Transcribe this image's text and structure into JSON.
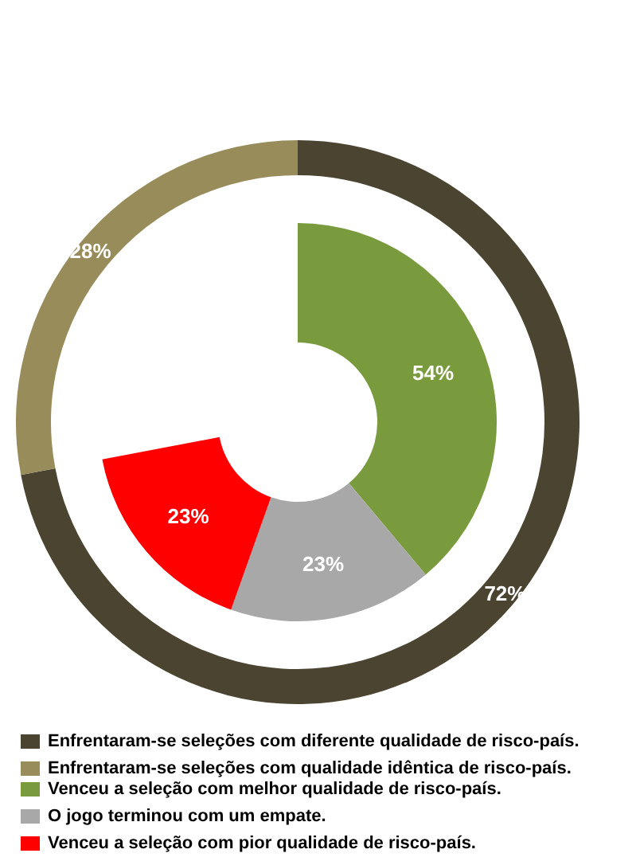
{
  "chart_data": [
    {
      "type": "donut",
      "legend": "bottom",
      "categories": [
        "Enfrentaram-se seleções com diferente qualidade de risco-país.",
        "Enfrentaram-se seleções com qualidade idêntica de risco-país."
      ],
      "values": [
        72,
        28
      ],
      "colors": [
        "#4b4431",
        "#988c5b"
      ],
      "value_labels": [
        "72%",
        "28%"
      ]
    },
    {
      "type": "donut",
      "legend": "bottom",
      "categories": [
        "Venceu a seleção com melhor qualidade de risco-país.",
        "O jogo terminou com um empate.",
        "Venceu a seleção com pior qualidade de risco-país."
      ],
      "values": [
        54,
        23,
        23
      ],
      "colors": [
        "#7a9a3e",
        "#a8a8a8",
        "#ff0000"
      ],
      "value_labels": [
        "54%",
        "23%",
        "23%"
      ]
    }
  ]
}
